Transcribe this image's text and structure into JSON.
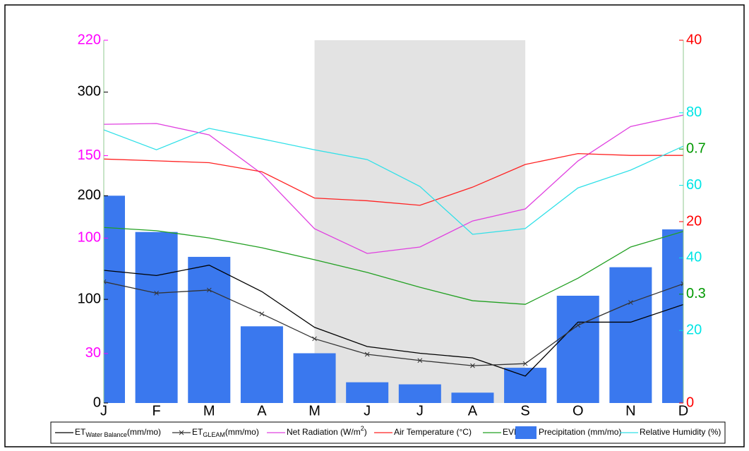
{
  "chart_data": {
    "type": "combo",
    "categories": [
      "J",
      "F",
      "M",
      "A",
      "M",
      "J",
      "J",
      "A",
      "S",
      "O",
      "N",
      "D"
    ],
    "shade": {
      "from": 4,
      "to": 8,
      "color": "#e3e3e3"
    },
    "axes": [
      {
        "id": "y",
        "side": "left",
        "color": "#000000",
        "ylim": [
          0,
          350
        ],
        "yticks": [
          0,
          100,
          200,
          300
        ]
      },
      {
        "id": "y2",
        "side": "left",
        "color": "#ff00ff",
        "ylim": [
          0,
          220
        ],
        "yticks": [
          30,
          100,
          150,
          220
        ]
      },
      {
        "id": "y3",
        "side": "right",
        "color": "#ff0000",
        "ylim": [
          0,
          40
        ],
        "yticks": [
          0,
          20,
          40
        ]
      },
      {
        "id": "y4",
        "side": "right",
        "color": "#00e5e5",
        "ylim": [
          0,
          100
        ],
        "yticks": [
          20,
          40,
          60,
          80
        ]
      },
      {
        "id": "y5",
        "side": "right",
        "color": "#009900",
        "ylim": [
          0,
          1
        ],
        "yticks": [
          0.3,
          0.7
        ]
      }
    ],
    "series": [
      {
        "name": [
          "ET",
          "Water Balance",
          "(mm/mo)"
        ],
        "name_script": "sub",
        "type": "line",
        "axis": "y",
        "color": "#000000",
        "values": [
          128,
          123,
          133,
          107.5,
          73,
          54.5,
          48,
          43.5,
          26,
          78,
          78,
          95
        ]
      },
      {
        "name": [
          "ET",
          "GLEAM",
          "(mm/mo)"
        ],
        "name_script": "sub",
        "type": "line",
        "marker": "x",
        "axis": "y",
        "color": "#333333",
        "values": [
          117,
          106,
          109,
          86,
          62,
          47,
          41,
          36,
          38,
          75,
          97,
          115
        ]
      },
      {
        "name": [
          "Net Radiation (W/m",
          "2",
          ")"
        ],
        "name_script": "super",
        "type": "line",
        "axis": "y2",
        "color": "#e040e0",
        "values": [
          169,
          169.5,
          162.6,
          139,
          105.7,
          90.7,
          94.6,
          110.4,
          117.7,
          146.8,
          167.7,
          174.6
        ]
      },
      {
        "name": [
          "Air Temperature (°C)"
        ],
        "type": "line",
        "axis": "y3",
        "color": "#ff2222",
        "values": [
          26.9,
          26.7,
          26.5,
          25.5,
          22.6,
          22.3,
          21.8,
          23.8,
          26.3,
          27.5,
          27.3,
          27.3
        ]
      },
      {
        "name": [
          "EVI"
        ],
        "type": "line",
        "axis": "y5",
        "color": "#22a022",
        "values": [
          0.484,
          0.475,
          0.455,
          0.428,
          0.395,
          0.36,
          0.319,
          0.282,
          0.272,
          0.344,
          0.43,
          0.473
        ]
      },
      {
        "name": [
          "Precipitation (mm/mo)"
        ],
        "type": "bar",
        "axis": "y",
        "color": "#3a78ee",
        "values": [
          200,
          165,
          141,
          74,
          48,
          20,
          18,
          10,
          34,
          103.5,
          131,
          167.5
        ]
      },
      {
        "name": [
          "Relative Humidity (%)"
        ],
        "type": "line",
        "axis": "y4",
        "color": "#30e0e8",
        "values": [
          75.3,
          69.8,
          75.7,
          72.8,
          69.8,
          67.1,
          59.7,
          46.5,
          48.1,
          59.3,
          64.2,
          70.8
        ]
      }
    ]
  }
}
